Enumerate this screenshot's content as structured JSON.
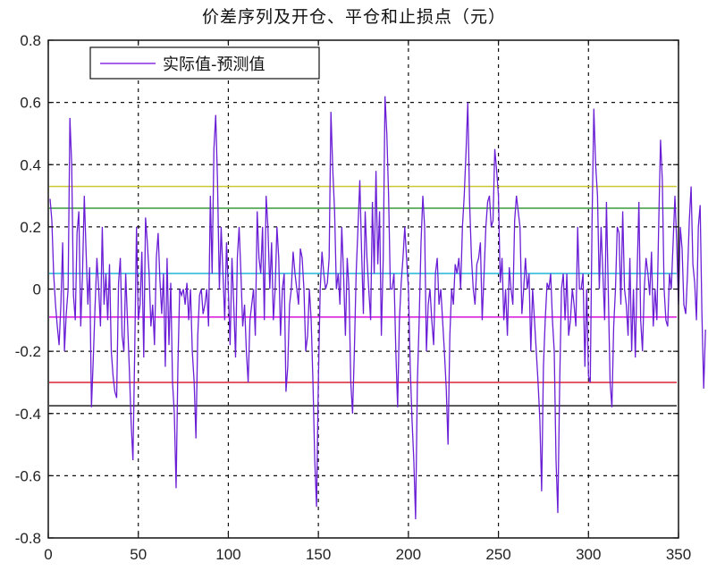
{
  "chart_data": {
    "type": "line",
    "title": "价差序列及开仓、平仓和止损点（元）",
    "xlabel": "",
    "ylabel": "",
    "xlim": [
      0,
      350
    ],
    "ylim": [
      -0.8,
      0.8
    ],
    "xticks": [
      0,
      50,
      100,
      150,
      200,
      250,
      300,
      350
    ],
    "yticks": [
      -0.8,
      -0.6,
      -0.4,
      -0.2,
      0,
      0.2,
      0.4,
      0.6,
      0.8
    ],
    "xtick_labels": [
      "0",
      "50",
      "100",
      "150",
      "200",
      "250",
      "300",
      "350"
    ],
    "ytick_labels": [
      "-0.8",
      "-0.6",
      "-0.4",
      "-0.2",
      "0",
      "0.2",
      "0.4",
      "0.6",
      "0.8"
    ],
    "grid": true,
    "legend": {
      "position": "upper left",
      "entries": [
        "实际值-预测值"
      ]
    },
    "series": [
      {
        "name": "实际值-预测值",
        "color": "#6a1fd6",
        "x_start": 1,
        "values": [
          0.29,
          0.22,
          0.05,
          -0.05,
          -0.12,
          -0.18,
          -0.05,
          0.15,
          -0.2,
          -0.08,
          0.0,
          0.55,
          0.4,
          -0.02,
          -0.1,
          0.18,
          0.25,
          -0.12,
          0.05,
          0.3,
          0.12,
          -0.05,
          0.07,
          -0.38,
          -0.22,
          -0.05,
          0.1,
          0.0,
          -0.12,
          0.2,
          -0.05,
          0.05,
          -0.1,
          0.08,
          -0.2,
          -0.28,
          -0.33,
          -0.35,
          0.02,
          0.1,
          -0.15,
          -0.2,
          0.05,
          -0.1,
          -0.25,
          -0.43,
          -0.55,
          -0.2,
          0.2,
          -0.1,
          -0.05,
          0.12,
          -0.22,
          0.23,
          0.15,
          0.05,
          -0.12,
          -0.05,
          -0.18,
          0.1,
          0.18,
          0.03,
          -0.08,
          0.05,
          -0.25,
          0.1,
          -0.18,
          0.02,
          -0.3,
          -0.4,
          -0.64,
          -0.25,
          0.0,
          -0.02,
          0.0,
          -0.05,
          0.02,
          -0.1,
          0.0,
          -0.2,
          -0.3,
          -0.48,
          -0.15,
          -0.02,
          0.0,
          -0.08,
          -0.05,
          0.0,
          -0.12,
          0.3,
          0.05,
          0.45,
          0.56,
          0.35,
          0.0,
          0.2,
          0.05,
          -0.1,
          0.15,
          0.0,
          -0.18,
          0.1,
          -0.05,
          -0.22,
          0.1,
          0.2,
          0.05,
          -0.12,
          -0.05,
          -0.2,
          -0.3,
          -0.1,
          -0.05,
          0.0,
          -0.15,
          0.25,
          0.1,
          0.05,
          0.2,
          -0.1,
          0.3,
          0.2,
          0.0,
          0.15,
          -0.1,
          0.0,
          0.2,
          0.1,
          -0.15,
          0.0,
          0.05,
          -0.33,
          -0.25,
          -0.05,
          0.0,
          0.12,
          0.05,
          0.0,
          -0.05,
          0.13,
          0.1,
          0.0,
          -0.2,
          -0.15,
          0.0,
          -0.1,
          -0.3,
          -0.55,
          -0.7,
          -0.3,
          0.0,
          0.12,
          0.05,
          0.0,
          0.02,
          0.1,
          0.57,
          0.38,
          0.25,
          0.0,
          0.05,
          -0.05,
          0.2,
          0.05,
          -0.15,
          0.1,
          0.0,
          -0.3,
          -0.4,
          -0.2,
          0.05,
          0.2,
          0.35,
          0.12,
          -0.08,
          0.25,
          0.1,
          0.0,
          -0.1,
          0.28,
          0.05,
          0.38,
          0.08,
          0.25,
          -0.15,
          0.1,
          0.62,
          0.5,
          0.3,
          0.0,
          0.0,
          0.05,
          -0.2,
          -0.38,
          -0.1,
          0.02,
          0.1,
          0.2,
          0.1,
          0.0,
          -0.25,
          -0.42,
          -0.55,
          -0.74,
          -0.3,
          -0.1,
          0.15,
          0.3,
          0.2,
          -0.2,
          -0.05,
          0.0,
          -0.1,
          -0.18,
          0.05,
          0.1,
          -0.05,
          0.0,
          -0.1,
          -0.2,
          -0.32,
          -0.5,
          -0.15,
          0.0,
          -0.05,
          0.08,
          0.05,
          0.1,
          0.0,
          0.2,
          0.3,
          0.44,
          0.6,
          0.28,
          0.1,
          0.0,
          -0.05,
          0.08,
          0.1,
          0.15,
          -0.1,
          0.05,
          0.2,
          0.28,
          0.3,
          0.2,
          0.22,
          0.45,
          0.38,
          0.3,
          0.02,
          0.1,
          -0.1,
          0.0,
          -0.15,
          0.07,
          0.0,
          -0.05,
          0.22,
          0.3,
          0.25,
          0.2,
          -0.08,
          0.0,
          0.1,
          0.0,
          0.05,
          -0.2,
          0.0,
          -0.1,
          -0.2,
          -0.3,
          -0.42,
          -0.65,
          -0.25,
          -0.1,
          0.02,
          0.0,
          0.05,
          -0.1,
          -0.2,
          -0.55,
          -0.72,
          -0.3,
          0.0,
          0.05,
          -0.1,
          0.05,
          -0.15,
          -0.1,
          0.0,
          -0.05,
          -0.12,
          0.2,
          0.0,
          0.0,
          0.05,
          -0.25,
          0.0,
          -0.28,
          -0.3,
          0.22,
          0.58,
          0.4,
          0.3,
          0.0,
          0.2,
          0.05,
          -0.1,
          0.28,
          0.0,
          -0.3,
          -0.38,
          -0.12,
          0.0,
          0.2,
          0.18,
          -0.05,
          0.25,
          0.0,
          -0.05,
          -0.15,
          0.1,
          -0.2,
          0.0,
          -0.22,
          0.05,
          0.28,
          -0.1,
          -0.2,
          0.0,
          0.1,
          0.05,
          -0.02,
          0.12,
          -0.12,
          0.0,
          -0.1,
          0.2,
          0.48,
          0.35,
          0.0,
          -0.1,
          -0.12,
          0.05,
          0.0,
          0.15,
          0.3,
          0.15,
          -0.05,
          0.2,
          0.13,
          -0.05,
          -0.08,
          0.05,
          0.22,
          0.33,
          0.08,
          0.02,
          -0.1,
          0.2,
          0.27,
          -0.08,
          -0.32,
          -0.13
        ]
      }
    ],
    "hlines": [
      {
        "y": 0.33,
        "color": "#c8c832",
        "label": "yellow level"
      },
      {
        "y": 0.26,
        "color": "#3a9a3a",
        "label": "green level"
      },
      {
        "y": 0.05,
        "color": "#33bbdd",
        "label": "cyan level"
      },
      {
        "y": -0.09,
        "color": "#dd22dd",
        "label": "magenta level"
      },
      {
        "y": -0.3,
        "color": "#dd3344",
        "label": "red level"
      },
      {
        "y": -0.375,
        "color": "#333333",
        "label": "black level"
      }
    ]
  },
  "title": "价差序列及开仓、平仓和止损点（元）",
  "legend": {
    "label": "实际值-预测值",
    "line_color": "#8a2be2"
  }
}
